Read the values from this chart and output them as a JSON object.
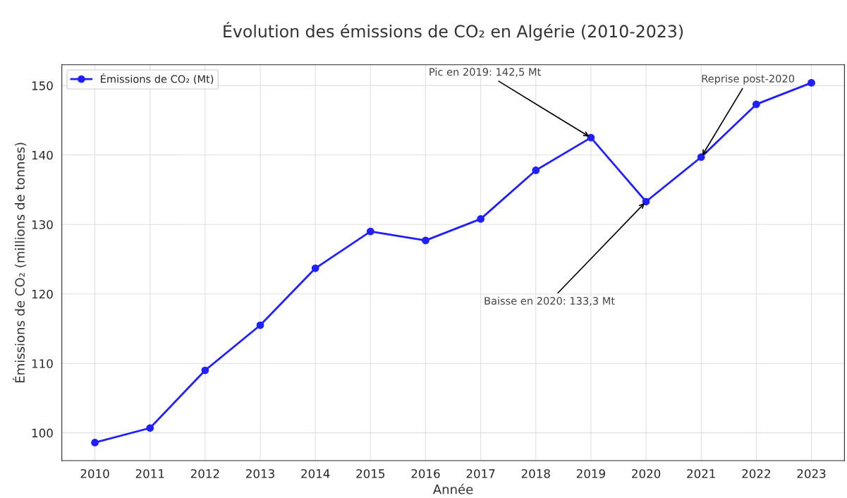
{
  "chart_data": {
    "type": "line",
    "title": "Évolution des émissions de CO₂ en Algérie (2010-2023)",
    "xlabel": "Année",
    "ylabel": "Émissions de CO₂ (millions de tonnes)",
    "x": [
      2010,
      2011,
      2012,
      2013,
      2014,
      2015,
      2016,
      2017,
      2018,
      2019,
      2020,
      2021,
      2022,
      2023
    ],
    "series": [
      {
        "name": "Émissions de CO₂ (Mt)",
        "color": "#1f1fff",
        "values": [
          98.6,
          100.7,
          109.0,
          115.5,
          123.7,
          129.0,
          127.7,
          130.8,
          137.8,
          142.5,
          133.3,
          139.7,
          147.3,
          150.4
        ]
      }
    ],
    "xlim": [
      2009.4,
      2023.6
    ],
    "xticks": [
      2010,
      2011,
      2012,
      2013,
      2014,
      2015,
      2016,
      2017,
      2018,
      2019,
      2020,
      2021,
      2022,
      2023
    ],
    "ylim": [
      96,
      153
    ],
    "yticks": [
      100,
      110,
      120,
      130,
      140,
      150
    ],
    "annotations": [
      {
        "text": "Pic en 2019: 142,5 Mt",
        "x": 2019,
        "y": 142.5
      },
      {
        "text": "Baisse en 2020: 133,3 Mt",
        "x": 2020,
        "y": 133.3
      },
      {
        "text": "Reprise post-2020",
        "x": 2021,
        "y": 139.7
      }
    ],
    "grid": true,
    "legend": "top left",
    "marker": "circle",
    "line_style": "solid"
  }
}
